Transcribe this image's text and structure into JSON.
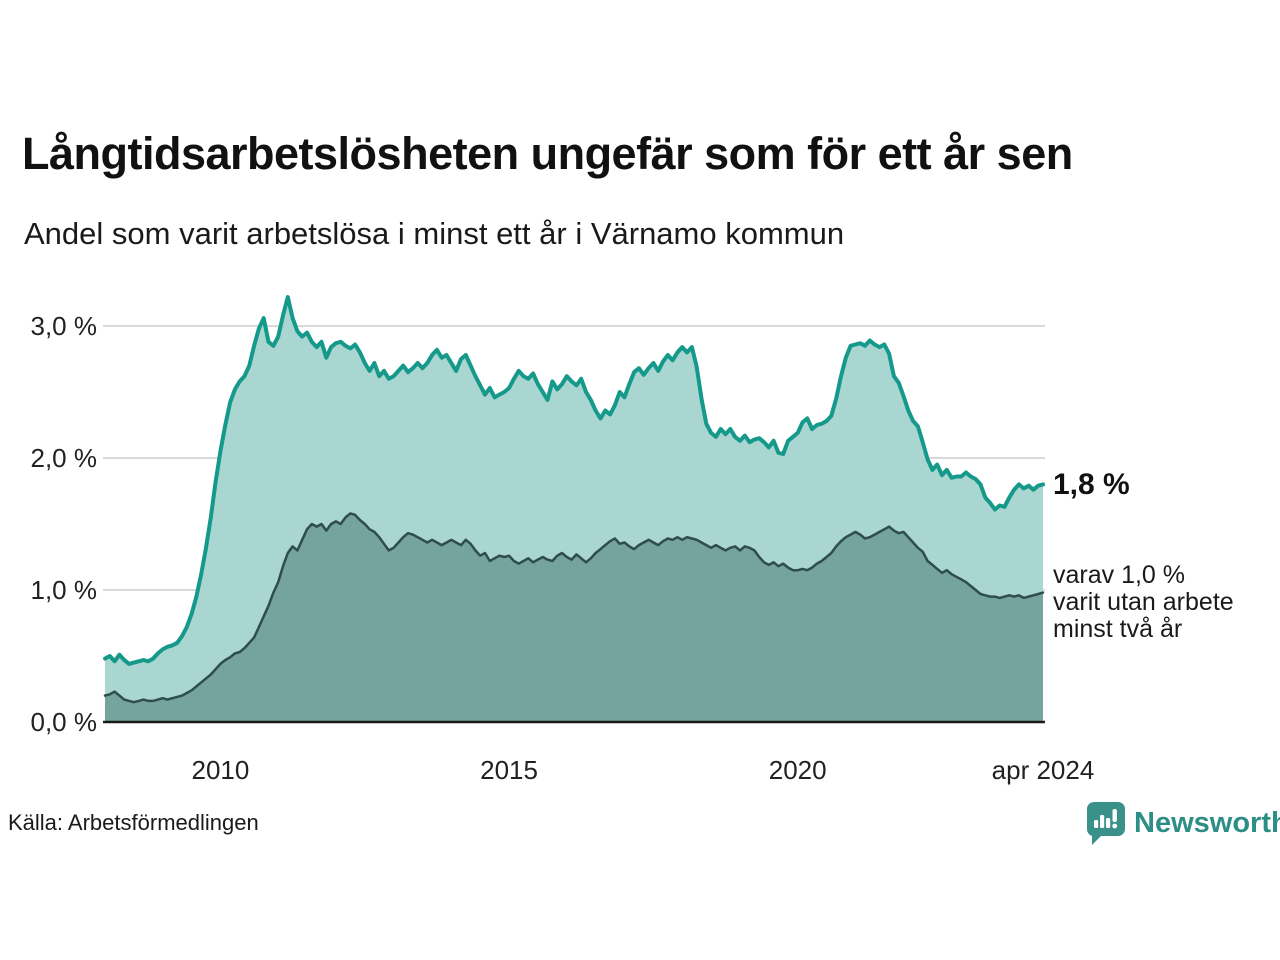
{
  "header": {
    "title": "Långtidsarbetslösheten ungefär som för ett år sen",
    "subtitle": "Andel som varit arbetslösa i minst ett år i Värnamo kommun"
  },
  "chart_data": {
    "type": "area",
    "title": "Långtidsarbetslösheten ungefär som för ett år sen",
    "subtitle": "Andel som varit arbetslösa i minst ett år i Värnamo kommun",
    "unit": "%",
    "grid": "horizontal-only",
    "legend_position": "right-annotations",
    "x_axis": {
      "range": [
        2008.0,
        2024.25
      ],
      "ticks": [
        {
          "value": 2010,
          "label": "2010"
        },
        {
          "value": 2015,
          "label": "2015"
        },
        {
          "value": 2020,
          "label": "2020"
        },
        {
          "value": 2024.25,
          "label": "apr 2024"
        }
      ]
    },
    "y_axis": {
      "range": [
        0,
        3.4
      ],
      "ticks": [
        {
          "value": 0,
          "label": "0,0 %"
        },
        {
          "value": 1,
          "label": "1,0 %"
        },
        {
          "value": 2,
          "label": "2,0 %"
        },
        {
          "value": 3,
          "label": "3,0 %"
        }
      ]
    },
    "series": [
      {
        "id": "primary",
        "name": "Andel som varit arbetslösa i minst ett år",
        "latest_value": 1.8,
        "line_color": "#14998b",
        "fill_color": "#a9d6d0",
        "line_width": 4,
        "start": 2008.0,
        "step": 0.0833333,
        "values": [
          0.48,
          0.5,
          0.46,
          0.51,
          0.47,
          0.44,
          0.45,
          0.46,
          0.47,
          0.46,
          0.48,
          0.52,
          0.55,
          0.57,
          0.58,
          0.6,
          0.65,
          0.72,
          0.82,
          0.95,
          1.12,
          1.32,
          1.55,
          1.82,
          2.05,
          2.25,
          2.42,
          2.52,
          2.58,
          2.62,
          2.7,
          2.85,
          2.98,
          3.06,
          2.88,
          2.85,
          2.92,
          3.08,
          3.22,
          3.06,
          2.96,
          2.92,
          2.95,
          2.88,
          2.84,
          2.88,
          2.76,
          2.84,
          2.87,
          2.88,
          2.85,
          2.83,
          2.86,
          2.8,
          2.72,
          2.66,
          2.72,
          2.62,
          2.66,
          2.6,
          2.62,
          2.66,
          2.7,
          2.65,
          2.68,
          2.72,
          2.68,
          2.72,
          2.78,
          2.82,
          2.76,
          2.78,
          2.72,
          2.66,
          2.75,
          2.78,
          2.7,
          2.62,
          2.55,
          2.48,
          2.53,
          2.46,
          2.48,
          2.5,
          2.53,
          2.6,
          2.66,
          2.62,
          2.6,
          2.64,
          2.56,
          2.5,
          2.44,
          2.58,
          2.52,
          2.56,
          2.62,
          2.58,
          2.55,
          2.6,
          2.5,
          2.44,
          2.36,
          2.3,
          2.36,
          2.33,
          2.4,
          2.5,
          2.46,
          2.56,
          2.65,
          2.68,
          2.63,
          2.68,
          2.72,
          2.66,
          2.73,
          2.78,
          2.74,
          2.8,
          2.84,
          2.8,
          2.84,
          2.69,
          2.45,
          2.26,
          2.19,
          2.16,
          2.22,
          2.18,
          2.22,
          2.16,
          2.13,
          2.17,
          2.12,
          2.14,
          2.15,
          2.12,
          2.08,
          2.13,
          2.04,
          2.03,
          2.13,
          2.16,
          2.19,
          2.27,
          2.3,
          2.22,
          2.25,
          2.26,
          2.28,
          2.32,
          2.45,
          2.62,
          2.76,
          2.85,
          2.86,
          2.87,
          2.85,
          2.89,
          2.86,
          2.84,
          2.86,
          2.79,
          2.62,
          2.57,
          2.47,
          2.36,
          2.28,
          2.24,
          2.12,
          1.99,
          1.91,
          1.95,
          1.87,
          1.91,
          1.85,
          1.86,
          1.86,
          1.89,
          1.86,
          1.84,
          1.8,
          1.7,
          1.66,
          1.61,
          1.64,
          1.63,
          1.7,
          1.76,
          1.8,
          1.77,
          1.79,
          1.76,
          1.79,
          1.8
        ]
      },
      {
        "id": "secondary",
        "name": "varav varit utan arbete minst två år",
        "latest_value": 1.0,
        "line_color": "#2f4d49",
        "fill_color": "#74a49d",
        "line_width": 2.5,
        "start": 2008.0,
        "step": 0.0833333,
        "values": [
          0.2,
          0.21,
          0.23,
          0.2,
          0.17,
          0.16,
          0.15,
          0.16,
          0.17,
          0.16,
          0.16,
          0.17,
          0.18,
          0.17,
          0.18,
          0.19,
          0.2,
          0.22,
          0.24,
          0.27,
          0.3,
          0.33,
          0.36,
          0.4,
          0.44,
          0.47,
          0.49,
          0.52,
          0.53,
          0.56,
          0.6,
          0.64,
          0.72,
          0.8,
          0.88,
          0.98,
          1.06,
          1.18,
          1.28,
          1.33,
          1.3,
          1.38,
          1.46,
          1.5,
          1.48,
          1.5,
          1.45,
          1.5,
          1.52,
          1.5,
          1.55,
          1.58,
          1.57,
          1.53,
          1.5,
          1.46,
          1.44,
          1.4,
          1.35,
          1.3,
          1.32,
          1.36,
          1.4,
          1.43,
          1.42,
          1.4,
          1.38,
          1.36,
          1.38,
          1.36,
          1.34,
          1.36,
          1.38,
          1.36,
          1.34,
          1.38,
          1.35,
          1.3,
          1.26,
          1.28,
          1.22,
          1.24,
          1.26,
          1.25,
          1.26,
          1.22,
          1.2,
          1.22,
          1.24,
          1.21,
          1.23,
          1.25,
          1.23,
          1.22,
          1.26,
          1.28,
          1.25,
          1.23,
          1.27,
          1.24,
          1.21,
          1.24,
          1.28,
          1.31,
          1.34,
          1.37,
          1.39,
          1.35,
          1.36,
          1.33,
          1.31,
          1.34,
          1.36,
          1.38,
          1.36,
          1.34,
          1.37,
          1.39,
          1.38,
          1.4,
          1.38,
          1.4,
          1.39,
          1.38,
          1.36,
          1.34,
          1.32,
          1.34,
          1.32,
          1.3,
          1.32,
          1.33,
          1.3,
          1.33,
          1.32,
          1.3,
          1.25,
          1.21,
          1.19,
          1.21,
          1.18,
          1.2,
          1.17,
          1.15,
          1.15,
          1.16,
          1.15,
          1.17,
          1.2,
          1.22,
          1.25,
          1.28,
          1.33,
          1.37,
          1.4,
          1.42,
          1.44,
          1.42,
          1.39,
          1.4,
          1.42,
          1.44,
          1.46,
          1.48,
          1.45,
          1.43,
          1.44,
          1.4,
          1.36,
          1.32,
          1.29,
          1.22,
          1.19,
          1.16,
          1.13,
          1.15,
          1.12,
          1.1,
          1.08,
          1.06,
          1.03,
          1.0,
          0.97,
          0.96,
          0.95,
          0.95,
          0.94,
          0.95,
          0.96,
          0.95,
          0.96,
          0.94,
          0.95,
          0.96,
          0.97,
          0.98
        ]
      }
    ],
    "annotations": {
      "latest_value": "1,8 %",
      "secondary_lines": [
        "varav 1,0 %",
        "varit utan arbete",
        "minst två år"
      ]
    },
    "style": {
      "gridline_color": "#d9d9d9",
      "axis_line_color": "#1a1a1a",
      "tick_text_color": "#222222"
    }
  },
  "footer": {
    "source": "Källa: Arbetsförmedlingen",
    "brand": "Newsworthy",
    "brand_color": "#2d8e85",
    "brand_icon": "speech-bubble-bar-chart"
  }
}
